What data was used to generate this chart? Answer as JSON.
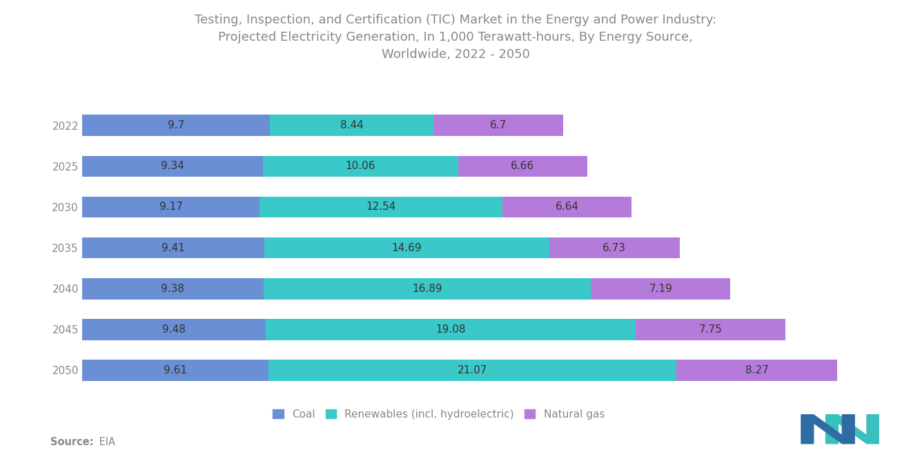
{
  "title": "Testing, Inspection, and Certification (TIC) Market in the Energy and Power Industry:\nProjected Electricity Generation, In 1,000 Terawatt-hours, By Energy Source,\nWorldwide, 2022 - 2050",
  "years": [
    2022,
    2025,
    2030,
    2035,
    2040,
    2045,
    2050
  ],
  "coal": [
    9.7,
    9.34,
    9.17,
    9.41,
    9.38,
    9.48,
    9.61
  ],
  "renewables": [
    8.44,
    10.06,
    12.54,
    14.69,
    16.89,
    19.08,
    21.07
  ],
  "natural_gas": [
    6.7,
    6.66,
    6.64,
    6.73,
    7.19,
    7.75,
    8.27
  ],
  "coal_color": "#6B8FD4",
  "renewables_color": "#3AC8C8",
  "natural_gas_color": "#B57BDB",
  "legend_labels": [
    "Coal",
    "Renewables (incl. hydroelectric)",
    "Natural gas"
  ],
  "source_label_bold": "Source:",
  "source_label_normal": " EIA",
  "bar_height": 0.52,
  "title_fontsize": 13.0,
  "label_fontsize": 11,
  "tick_fontsize": 11,
  "background_color": "#FFFFFF",
  "text_color": "#888888",
  "bar_text_color": "#333333"
}
